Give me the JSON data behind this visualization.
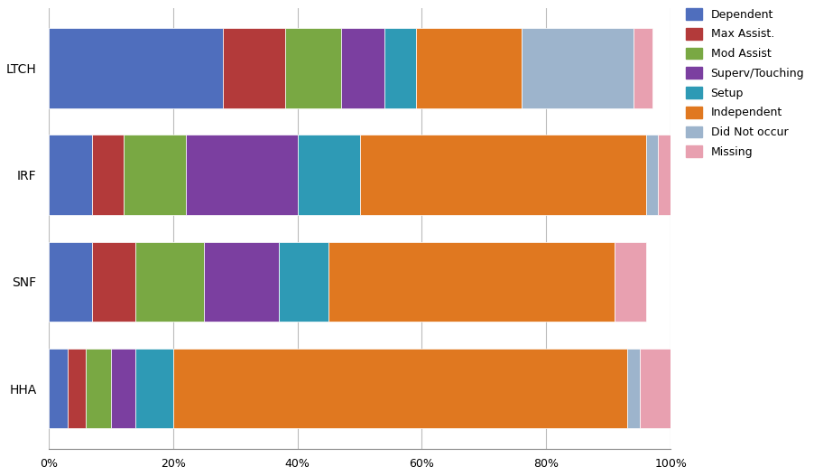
{
  "providers": [
    "LTCH",
    "IRF",
    "SNF",
    "HHA"
  ],
  "categories": [
    "Dependent",
    "Max Assist.",
    "Mod Assist",
    "Superv/Touching",
    "Setup",
    "Independent",
    "Did Not occur",
    "Missing"
  ],
  "colors": [
    "#4F6EBD",
    "#B33A3A",
    "#79A843",
    "#7B3FA0",
    "#2E9AB5",
    "#E07820",
    "#9DB4CC",
    "#E8A0B0"
  ],
  "values": {
    "LTCH": [
      28.0,
      10.0,
      9.0,
      7.0,
      5.0,
      17.0,
      18.0,
      3.0
    ],
    "IRF": [
      7.0,
      5.0,
      10.0,
      18.0,
      10.0,
      46.0,
      2.0,
      2.0
    ],
    "SNF": [
      7.0,
      7.0,
      11.0,
      12.0,
      8.0,
      46.0,
      0.0,
      5.0
    ],
    "HHA": [
      3.0,
      3.0,
      4.0,
      4.0,
      6.0,
      73.0,
      2.0,
      5.0
    ]
  },
  "background_color": "#FFFFFF",
  "grid_color": "#BBBBBB",
  "figsize": [
    9.02,
    5.27
  ],
  "dpi": 100,
  "bar_height": 0.75
}
